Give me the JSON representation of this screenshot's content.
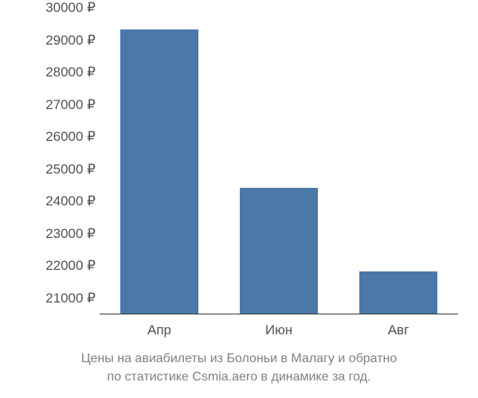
{
  "chart": {
    "type": "bar",
    "categories": [
      "Апр",
      "Июн",
      "Авг"
    ],
    "values": [
      29300,
      24400,
      21800
    ],
    "bar_color": "#4a79a8",
    "background_color": "#ffffff",
    "ylim": [
      20500,
      30000
    ],
    "ytick_step": 1000,
    "yticks": [
      21000,
      22000,
      23000,
      24000,
      25000,
      26000,
      27000,
      28000,
      29000,
      30000
    ],
    "ytick_labels": [
      "21000 ₽",
      "22000 ₽",
      "23000 ₽",
      "24000 ₽",
      "25000 ₽",
      "26000 ₽",
      "27000 ₽",
      "28000 ₽",
      "29000 ₽",
      "30000 ₽"
    ],
    "text_color": "#515151",
    "axis_color": "#333333",
    "bar_width_ratio": 0.65,
    "label_fontsize": 17,
    "caption_fontsize": 16,
    "caption_color": "#808080"
  },
  "caption": {
    "line1": "Цены на авиабилеты из Болоньи в Малагу и обратно",
    "line2": "по статистике Csmia.aero в динамике за год."
  }
}
